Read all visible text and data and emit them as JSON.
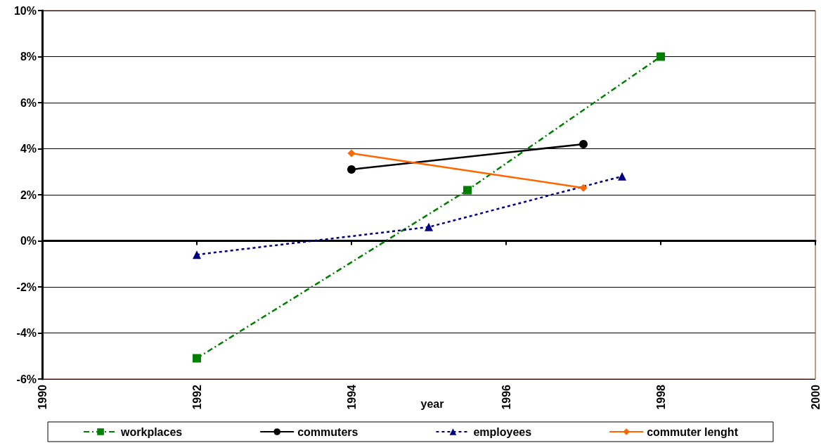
{
  "chart_data": {
    "type": "line",
    "xlabel": "year",
    "xlim": [
      1990,
      2000
    ],
    "xticks": [
      1990,
      1992,
      1994,
      1996,
      1998,
      2000
    ],
    "ylim": [
      -6,
      10
    ],
    "yticks": [
      {
        "value": -6,
        "label": "-6%"
      },
      {
        "value": -4,
        "label": "-4%"
      },
      {
        "value": -2,
        "label": "-2%"
      },
      {
        "value": 0,
        "label": "0%"
      },
      {
        "value": 2,
        "label": "2%"
      },
      {
        "value": 4,
        "label": "4%"
      },
      {
        "value": 6,
        "label": "6%"
      },
      {
        "value": 8,
        "label": "8%"
      },
      {
        "value": 10,
        "label": "10%"
      }
    ],
    "grid": "y",
    "legend": "bottom",
    "series": [
      {
        "name": "workplaces",
        "color": "#008000",
        "marker": "square",
        "line_style": "dashed",
        "x": [
          1992,
          1995.5,
          1998
        ],
        "values": [
          -5.1,
          2.2,
          8.0
        ]
      },
      {
        "name": "commuters",
        "color": "#000000",
        "marker": "circle",
        "line_style": "solid",
        "x": [
          1994,
          1997
        ],
        "values": [
          3.1,
          4.2
        ]
      },
      {
        "name": "employees",
        "color": "#000080",
        "marker": "triangle",
        "line_style": "dotted",
        "x": [
          1992,
          1995,
          1997.5
        ],
        "values": [
          -0.6,
          0.6,
          2.8
        ]
      },
      {
        "name": "commuter lenght",
        "color": "#ff6600",
        "marker": "diamond",
        "line_style": "solid",
        "x": [
          1994,
          1997
        ],
        "values": [
          3.8,
          2.3
        ]
      }
    ]
  }
}
